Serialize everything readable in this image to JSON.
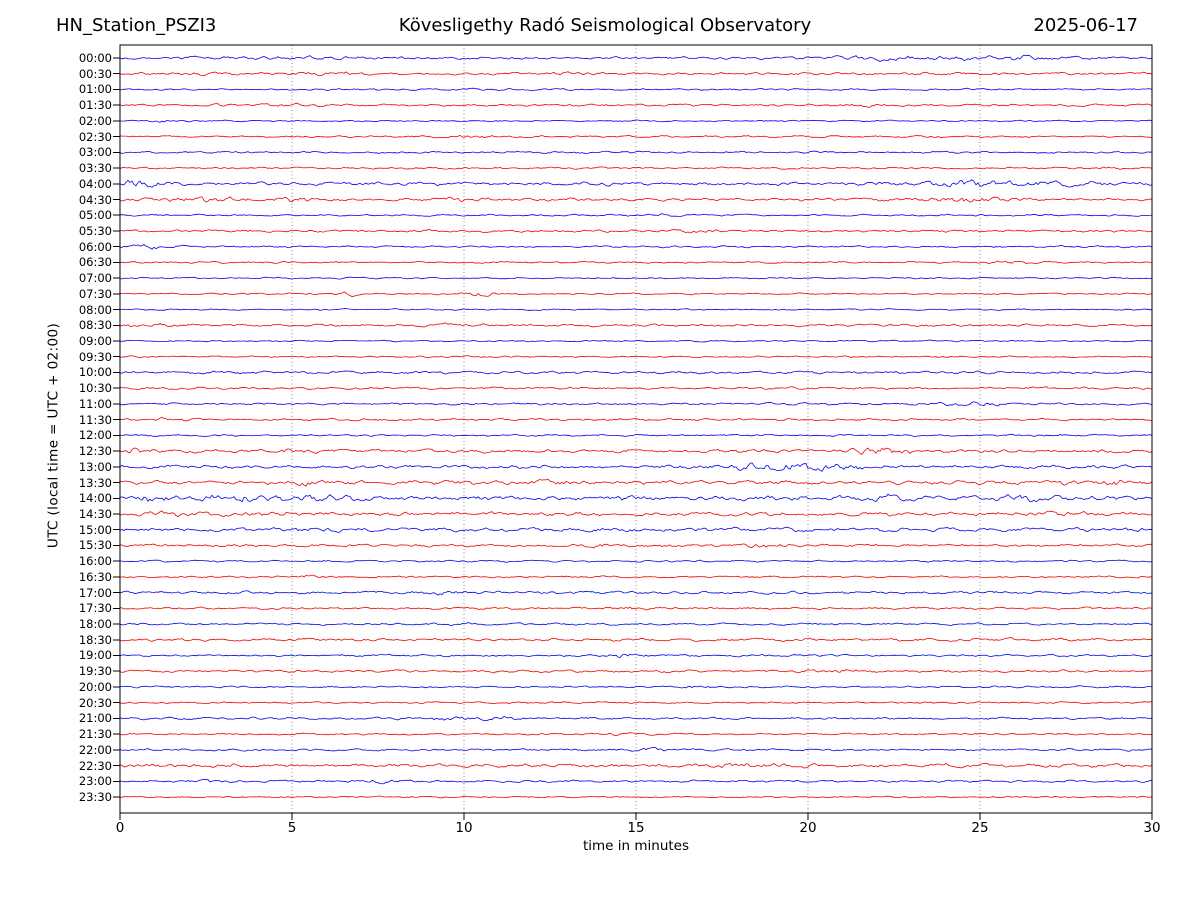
{
  "titles": {
    "left": "HN_Station_PSZI3",
    "center": "Kövesligethy Radó Seismological Observatory",
    "right": "2025-06-17"
  },
  "axes": {
    "xlabel": "time in minutes",
    "ylabel": "UTC (local time = UTC + 02:00)"
  },
  "colors": {
    "background": "#ffffff",
    "axis": "#000000",
    "grid": "#8a8a8a",
    "text": "#000000"
  },
  "chart_data": {
    "type": "line",
    "subtype": "helicorder-dayplot",
    "title_left": "HN_Station_PSZI3",
    "title_center": "Kövesligethy Radó Seismological Observatory",
    "title_right": "2025-06-17",
    "xlabel": "time in minutes",
    "ylabel": "UTC (local time = UTC + 02:00)",
    "xlim": [
      0,
      30
    ],
    "x_ticks": [
      0,
      5,
      10,
      15,
      20,
      25,
      30
    ],
    "grid": "vertical-dotted",
    "minutes_per_trace": 30,
    "palette": {
      "blue": "#0000ee",
      "red": "#ee0000"
    },
    "note": "48 half-hour traces of ambient seismic noise; amp = relative noise amplitude (px), bursts = [minute, sigma_minutes, gain] of visible wave packets",
    "traces": [
      {
        "label": "00:00",
        "color": "blue",
        "amp": 0.9,
        "bursts": [
          [
            6,
            1.5,
            0.4
          ],
          [
            21.8,
            1.2,
            1.2
          ],
          [
            25.6,
            1.0,
            1.1
          ]
        ]
      },
      {
        "label": "00:30",
        "color": "red",
        "amp": 0.8,
        "bursts": [
          [
            2.6,
            0.5,
            1.0
          ],
          [
            6.2,
            0.6,
            0.8
          ],
          [
            13.2,
            0.4,
            1.4
          ],
          [
            24.6,
            0.8,
            0.7
          ]
        ]
      },
      {
        "label": "01:00",
        "color": "blue",
        "amp": 0.6,
        "bursts": []
      },
      {
        "label": "01:30",
        "color": "red",
        "amp": 0.7,
        "bursts": [
          [
            2.6,
            0.5,
            0.9
          ],
          [
            5.2,
            0.5,
            0.8
          ],
          [
            21.6,
            0.6,
            0.8
          ]
        ]
      },
      {
        "label": "02:00",
        "color": "blue",
        "amp": 0.5,
        "bursts": [
          [
            1.4,
            0.4,
            1.5
          ]
        ]
      },
      {
        "label": "02:30",
        "color": "red",
        "amp": 0.6,
        "bursts": [
          [
            10.2,
            0.6,
            0.7
          ],
          [
            24.0,
            0.7,
            0.6
          ]
        ]
      },
      {
        "label": "03:00",
        "color": "blue",
        "amp": 0.7,
        "bursts": []
      },
      {
        "label": "03:30",
        "color": "red",
        "amp": 0.6,
        "bursts": [
          [
            10.3,
            0.5,
            0.8
          ],
          [
            28.6,
            0.5,
            0.9
          ]
        ]
      },
      {
        "label": "04:00",
        "color": "blue",
        "amp": 1.2,
        "bursts": [
          [
            0.5,
            0.6,
            1.4
          ],
          [
            24.8,
            1.0,
            1.2
          ],
          [
            27.0,
            1.0,
            0.7
          ]
        ]
      },
      {
        "label": "04:30",
        "color": "red",
        "amp": 1.0,
        "bursts": [
          [
            2.6,
            0.8,
            1.0
          ],
          [
            5.0,
            0.6,
            0.8
          ],
          [
            10.0,
            0.6,
            0.8
          ],
          [
            24.5,
            0.8,
            1.1
          ]
        ]
      },
      {
        "label": "05:00",
        "color": "blue",
        "amp": 0.6,
        "bursts": [
          [
            15.4,
            0.5,
            1.2
          ]
        ]
      },
      {
        "label": "05:30",
        "color": "red",
        "amp": 0.8,
        "bursts": [
          [
            16.6,
            0.5,
            0.8
          ]
        ]
      },
      {
        "label": "06:00",
        "color": "blue",
        "amp": 0.6,
        "bursts": [
          [
            0.8,
            0.6,
            1.7
          ]
        ]
      },
      {
        "label": "06:30",
        "color": "red",
        "amp": 0.6,
        "bursts": [
          [
            26.3,
            0.6,
            1.1
          ]
        ]
      },
      {
        "label": "07:00",
        "color": "blue",
        "amp": 0.5,
        "bursts": []
      },
      {
        "label": "07:30",
        "color": "red",
        "amp": 0.5,
        "bursts": [
          [
            6.7,
            0.25,
            2.2
          ],
          [
            10.5,
            0.3,
            2.5
          ]
        ]
      },
      {
        "label": "08:00",
        "color": "blue",
        "amp": 0.5,
        "bursts": []
      },
      {
        "label": "08:30",
        "color": "red",
        "amp": 0.8,
        "bursts": [
          [
            1.0,
            0.6,
            0.7
          ],
          [
            9.8,
            0.6,
            0.7
          ]
        ]
      },
      {
        "label": "09:00",
        "color": "blue",
        "amp": 0.5,
        "bursts": []
      },
      {
        "label": "09:30",
        "color": "red",
        "amp": 0.5,
        "bursts": []
      },
      {
        "label": "10:00",
        "color": "blue",
        "amp": 0.9,
        "bursts": []
      },
      {
        "label": "10:30",
        "color": "red",
        "amp": 0.8,
        "bursts": []
      },
      {
        "label": "11:00",
        "color": "blue",
        "amp": 0.7,
        "bursts": [
          [
            24.8,
            0.6,
            1.2
          ]
        ]
      },
      {
        "label": "11:30",
        "color": "red",
        "amp": 0.7,
        "bursts": [
          [
            1.6,
            0.4,
            1.1
          ]
        ]
      },
      {
        "label": "12:00",
        "color": "blue",
        "amp": 0.6,
        "bursts": [
          [
            26.8,
            0.5,
            1.2
          ]
        ]
      },
      {
        "label": "12:30",
        "color": "red",
        "amp": 1.1,
        "bursts": [
          [
            0.4,
            0.5,
            1.1
          ],
          [
            5.1,
            0.4,
            0.9
          ],
          [
            22.1,
            0.8,
            1.3
          ]
        ]
      },
      {
        "label": "13:00",
        "color": "blue",
        "amp": 1.1,
        "bursts": [
          [
            18.8,
            1.2,
            1.2
          ],
          [
            20.5,
            0.8,
            0.9
          ]
        ]
      },
      {
        "label": "13:30",
        "color": "red",
        "amp": 1.2,
        "bursts": [
          [
            5.6,
            0.5,
            0.9
          ],
          [
            9.6,
            0.5,
            0.8
          ],
          [
            12.4,
            0.5,
            0.9
          ],
          [
            28.8,
            1.0,
            1.0
          ]
        ]
      },
      {
        "label": "14:00",
        "color": "blue",
        "amp": 1.5,
        "bursts": [
          [
            0.6,
            0.5,
            0.9
          ],
          [
            3.4,
            0.8,
            1.1
          ],
          [
            6.1,
            0.6,
            0.9
          ],
          [
            15.1,
            0.5,
            0.7
          ],
          [
            22.2,
            0.5,
            0.7
          ],
          [
            26.2,
            0.6,
            0.7
          ]
        ]
      },
      {
        "label": "14:30",
        "color": "red",
        "amp": 1.2,
        "bursts": [
          [
            1.1,
            0.5,
            0.8
          ],
          [
            4.0,
            0.6,
            0.9
          ],
          [
            27.2,
            0.6,
            0.8
          ]
        ]
      },
      {
        "label": "15:00",
        "color": "blue",
        "amp": 1.3,
        "bursts": []
      },
      {
        "label": "15:30",
        "color": "red",
        "amp": 0.9,
        "bursts": [
          [
            14.0,
            0.4,
            0.8
          ],
          [
            15.8,
            0.4,
            0.8
          ],
          [
            18.6,
            0.4,
            0.9
          ]
        ]
      },
      {
        "label": "16:00",
        "color": "blue",
        "amp": 0.6,
        "bursts": []
      },
      {
        "label": "16:30",
        "color": "red",
        "amp": 0.6,
        "bursts": [
          [
            5.5,
            0.4,
            1.2
          ]
        ]
      },
      {
        "label": "17:00",
        "color": "blue",
        "amp": 0.9,
        "bursts": [
          [
            9.4,
            0.5,
            0.8
          ]
        ]
      },
      {
        "label": "17:30",
        "color": "red",
        "amp": 0.7,
        "bursts": [
          [
            14.7,
            0.5,
            1.4
          ]
        ]
      },
      {
        "label": "18:00",
        "color": "blue",
        "amp": 0.7,
        "bursts": [
          [
            9.7,
            0.5,
            1.0
          ]
        ]
      },
      {
        "label": "18:30",
        "color": "red",
        "amp": 0.9,
        "bursts": []
      },
      {
        "label": "19:00",
        "color": "blue",
        "amp": 0.7,
        "bursts": [
          [
            14.6,
            0.5,
            1.1
          ]
        ]
      },
      {
        "label": "19:30",
        "color": "red",
        "amp": 0.8,
        "bursts": [
          [
            21.0,
            0.6,
            0.7
          ]
        ]
      },
      {
        "label": "20:00",
        "color": "blue",
        "amp": 0.6,
        "bursts": [
          [
            16.7,
            0.4,
            0.9
          ]
        ]
      },
      {
        "label": "20:30",
        "color": "red",
        "amp": 0.6,
        "bursts": []
      },
      {
        "label": "21:00",
        "color": "blue",
        "amp": 0.7,
        "bursts": [
          [
            9.6,
            0.5,
            1.2
          ],
          [
            10.9,
            0.4,
            1.4
          ]
        ]
      },
      {
        "label": "21:30",
        "color": "red",
        "amp": 0.6,
        "bursts": [
          [
            14.8,
            0.4,
            0.9
          ]
        ]
      },
      {
        "label": "22:00",
        "color": "blue",
        "amp": 0.7,
        "bursts": [
          [
            15.3,
            0.5,
            1.1
          ]
        ]
      },
      {
        "label": "22:30",
        "color": "red",
        "amp": 1.2,
        "bursts": [
          [
            18.5,
            1.0,
            0.7
          ]
        ]
      },
      {
        "label": "23:00",
        "color": "blue",
        "amp": 0.7,
        "bursts": [
          [
            2.9,
            0.5,
            1.2
          ],
          [
            7.6,
            0.4,
            1.3
          ]
        ]
      },
      {
        "label": "23:30",
        "color": "red",
        "amp": 0.5,
        "bursts": []
      }
    ]
  }
}
